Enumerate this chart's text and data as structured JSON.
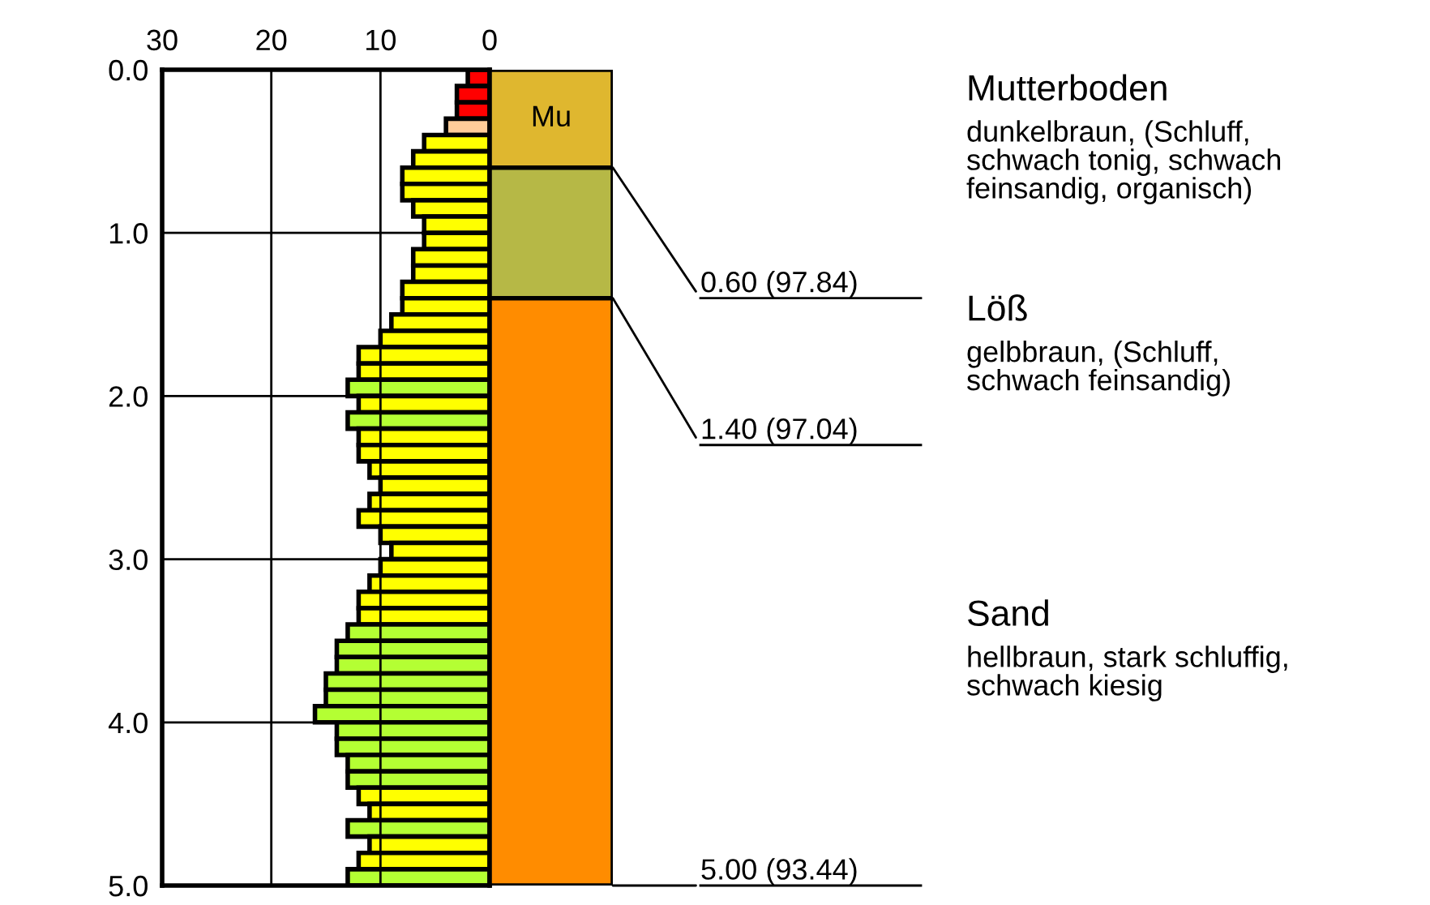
{
  "chart_data": [
    {
      "type": "bar",
      "orientation": "horizontal",
      "x": [
        0.05,
        0.15,
        0.25,
        0.35,
        0.45,
        0.55,
        0.65,
        0.75,
        0.85,
        0.95,
        1.05,
        1.15,
        1.25,
        1.35,
        1.45,
        1.55,
        1.65,
        1.75,
        1.85,
        1.95,
        2.05,
        2.15,
        2.25,
        2.35,
        2.45,
        2.55,
        2.65,
        2.75,
        2.85,
        2.95,
        3.05,
        3.15,
        3.25,
        3.35,
        3.45,
        3.55,
        3.65,
        3.75,
        3.85,
        3.95,
        4.05,
        4.15,
        4.25,
        4.35,
        4.45,
        4.55,
        4.65,
        4.75,
        4.85,
        4.95
      ],
      "values": [
        2,
        3,
        3,
        4,
        6,
        7,
        8,
        8,
        7,
        6,
        6,
        7,
        7,
        8,
        8,
        9,
        10,
        12,
        12,
        13,
        12,
        13,
        12,
        12,
        11,
        10,
        11,
        12,
        10,
        9,
        10,
        11,
        12,
        12,
        13,
        14,
        14,
        15,
        15,
        16,
        14,
        14,
        13,
        13,
        12,
        11,
        13,
        11,
        12,
        13
      ],
      "colors": [
        "#ff0000",
        "#ff0000",
        "#ff0000",
        "#ffcc99",
        "#ffff00",
        "#ffff00",
        "#ffff00",
        "#ffff00",
        "#ffff00",
        "#ffff00",
        "#ffff00",
        "#ffff00",
        "#ffff00",
        "#ffff00",
        "#ffff00",
        "#ffff00",
        "#ffff00",
        "#ffff00",
        "#ffff00",
        "#b4ff33",
        "#ffff00",
        "#b4ff33",
        "#ffff00",
        "#ffff00",
        "#ffff00",
        "#ffff00",
        "#ffff00",
        "#ffff00",
        "#ffff00",
        "#ffff00",
        "#ffff00",
        "#ffff00",
        "#ffff00",
        "#ffff00",
        "#b4ff33",
        "#b4ff33",
        "#b4ff33",
        "#b4ff33",
        "#b4ff33",
        "#b4ff33",
        "#b4ff33",
        "#b4ff33",
        "#b4ff33",
        "#b4ff33",
        "#ffff00",
        "#ffff00",
        "#b4ff33",
        "#ffff00",
        "#ffff00",
        "#b4ff33"
      ],
      "xlim": [
        30,
        0
      ],
      "xticks": [
        30,
        20,
        10,
        0
      ],
      "ylim": [
        5,
        0
      ],
      "yticks": [
        {
          "value": 0,
          "label": "0.0"
        },
        {
          "value": 1,
          "label": "1.0"
        },
        {
          "value": 2,
          "label": "2.0"
        },
        {
          "value": 3,
          "label": "3.0"
        },
        {
          "value": 4,
          "label": "4.0"
        },
        {
          "value": 5,
          "label": "5.0"
        }
      ],
      "grid": true
    },
    {
      "type": "bar",
      "stacked": true,
      "categories": [
        null
      ],
      "series": [
        {
          "name": "Mu",
          "color": "#dfb72f",
          "values": [
            0.6
          ]
        },
        {
          "color": "#b6b846",
          "values": [
            0.8
          ]
        },
        {
          "color": "#ff8c00",
          "values": [
            3.6
          ]
        }
      ],
      "ylim": [
        5,
        0
      ],
      "tick_labels": false,
      "annotations": [
        "0.60 (97.84)",
        "1.40 (97.04)",
        "5.00 (93.44)",
        "Mutterboden",
        "dunkelbraun, (Schluff,\nschwach tonig, schwach\nfeinsandig, organisch)",
        "Löß",
        "gelbbraun, (Schluff,\nschwach feinsandig)",
        "Sand",
        "hellbraun, stark schluffig,\nschwach kiesig"
      ]
    }
  ]
}
